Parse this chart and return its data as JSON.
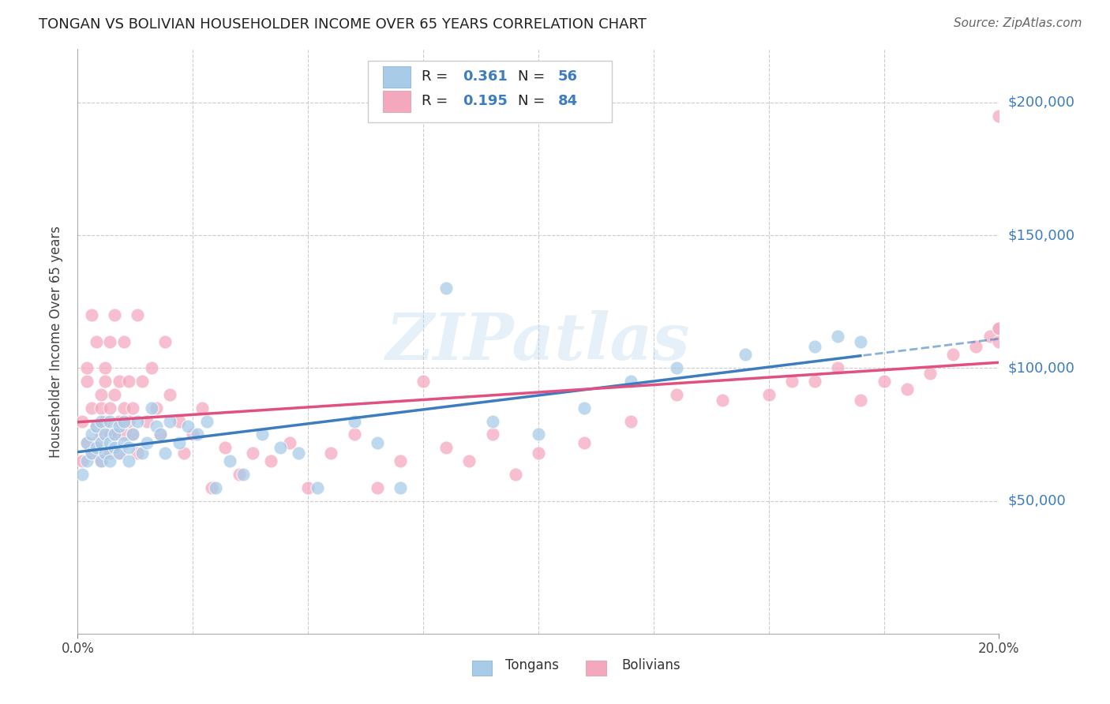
{
  "title": "TONGAN VS BOLIVIAN HOUSEHOLDER INCOME OVER 65 YEARS CORRELATION CHART",
  "source": "Source: ZipAtlas.com",
  "ylabel": "Householder Income Over 65 years",
  "ylim": [
    0,
    220000
  ],
  "xlim": [
    0.0,
    0.2
  ],
  "yticks": [
    50000,
    100000,
    150000,
    200000
  ],
  "ytick_labels": [
    "$50,000",
    "$100,000",
    "$150,000",
    "$200,000"
  ],
  "tongan_color": "#a8cce8",
  "bolivian_color": "#f4a8be",
  "tongan_line_color": "#3d7dbf",
  "bolivian_line_color": "#e05080",
  "background_color": "#ffffff",
  "grid_color": "#cccccc",
  "watermark": "ZIPatlas",
  "legend_R_tongan": "0.361",
  "legend_N_tongan": "56",
  "legend_R_bolivian": "0.195",
  "legend_N_bolivian": "84",
  "tongan_x": [
    0.001,
    0.002,
    0.002,
    0.003,
    0.003,
    0.004,
    0.004,
    0.005,
    0.005,
    0.005,
    0.006,
    0.006,
    0.007,
    0.007,
    0.007,
    0.008,
    0.008,
    0.009,
    0.009,
    0.01,
    0.01,
    0.011,
    0.011,
    0.012,
    0.013,
    0.014,
    0.015,
    0.016,
    0.017,
    0.018,
    0.019,
    0.02,
    0.022,
    0.024,
    0.026,
    0.028,
    0.03,
    0.033,
    0.036,
    0.04,
    0.044,
    0.048,
    0.052,
    0.06,
    0.065,
    0.07,
    0.08,
    0.09,
    0.1,
    0.11,
    0.12,
    0.13,
    0.145,
    0.16,
    0.165,
    0.17
  ],
  "tongan_y": [
    60000,
    65000,
    72000,
    68000,
    75000,
    70000,
    78000,
    65000,
    72000,
    80000,
    68000,
    75000,
    72000,
    65000,
    80000,
    70000,
    75000,
    68000,
    78000,
    72000,
    80000,
    65000,
    70000,
    75000,
    80000,
    68000,
    72000,
    85000,
    78000,
    75000,
    68000,
    80000,
    72000,
    78000,
    75000,
    80000,
    55000,
    65000,
    60000,
    75000,
    70000,
    68000,
    55000,
    80000,
    72000,
    55000,
    130000,
    80000,
    75000,
    85000,
    95000,
    100000,
    105000,
    108000,
    112000,
    110000
  ],
  "bolivian_x": [
    0.001,
    0.001,
    0.002,
    0.002,
    0.002,
    0.003,
    0.003,
    0.003,
    0.004,
    0.004,
    0.004,
    0.005,
    0.005,
    0.005,
    0.005,
    0.006,
    0.006,
    0.006,
    0.007,
    0.007,
    0.007,
    0.007,
    0.008,
    0.008,
    0.008,
    0.009,
    0.009,
    0.009,
    0.01,
    0.01,
    0.01,
    0.011,
    0.011,
    0.012,
    0.012,
    0.013,
    0.013,
    0.014,
    0.015,
    0.016,
    0.017,
    0.018,
    0.019,
    0.02,
    0.022,
    0.023,
    0.025,
    0.027,
    0.029,
    0.032,
    0.035,
    0.038,
    0.042,
    0.046,
    0.05,
    0.055,
    0.06,
    0.065,
    0.07,
    0.075,
    0.08,
    0.085,
    0.09,
    0.095,
    0.1,
    0.11,
    0.12,
    0.13,
    0.14,
    0.15,
    0.155,
    0.16,
    0.165,
    0.17,
    0.175,
    0.18,
    0.185,
    0.19,
    0.195,
    0.198,
    0.2,
    0.2,
    0.2,
    0.2
  ],
  "bolivian_y": [
    80000,
    65000,
    95000,
    72000,
    100000,
    85000,
    120000,
    68000,
    78000,
    72000,
    110000,
    90000,
    75000,
    85000,
    65000,
    100000,
    80000,
    95000,
    75000,
    85000,
    110000,
    68000,
    90000,
    75000,
    120000,
    80000,
    95000,
    68000,
    85000,
    75000,
    110000,
    80000,
    95000,
    75000,
    85000,
    120000,
    68000,
    95000,
    80000,
    100000,
    85000,
    75000,
    110000,
    90000,
    80000,
    68000,
    75000,
    85000,
    55000,
    70000,
    60000,
    68000,
    65000,
    72000,
    55000,
    68000,
    75000,
    55000,
    65000,
    95000,
    70000,
    65000,
    75000,
    60000,
    68000,
    72000,
    80000,
    90000,
    88000,
    90000,
    95000,
    95000,
    100000,
    88000,
    95000,
    92000,
    98000,
    105000,
    108000,
    112000,
    115000,
    195000,
    115000,
    110000
  ]
}
